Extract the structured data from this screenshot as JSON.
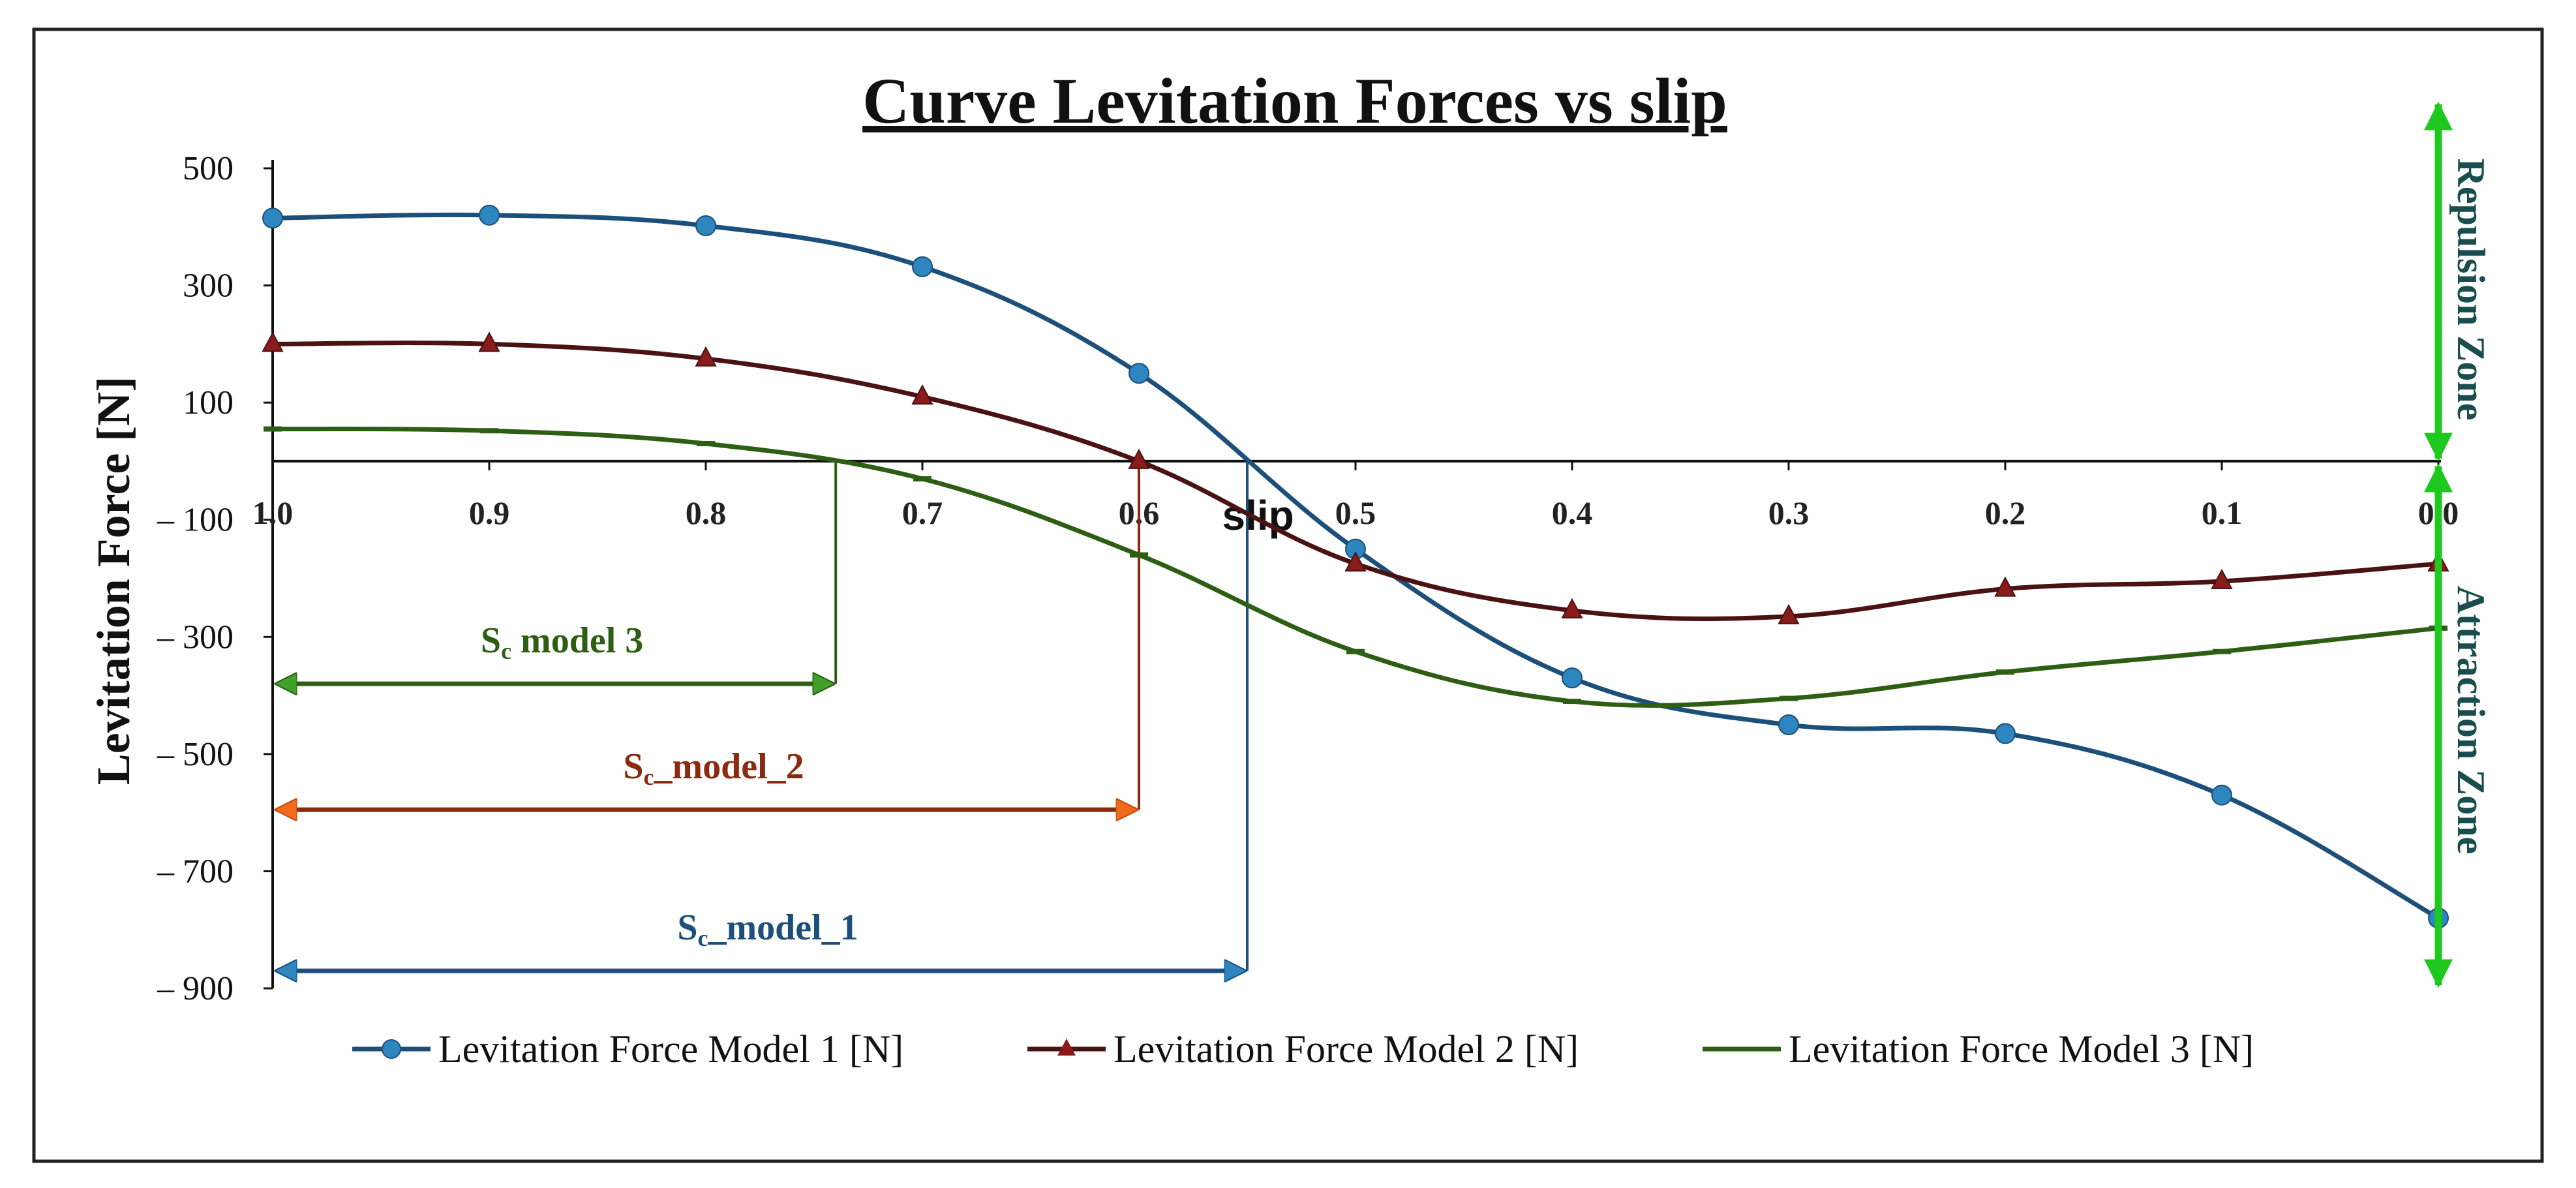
{
  "chart_data": {
    "type": "line",
    "title": "Curve Levitation Forces vs slip",
    "xlabel": "slip",
    "ylabel": "Levitation Force [N]",
    "x": [
      1.0,
      0.9,
      0.8,
      0.7,
      0.6,
      0.5,
      0.4,
      0.3,
      0.2,
      0.1,
      0.0
    ],
    "x_tick_labels": [
      "1.0",
      "0.9",
      "0.8",
      "0.7",
      "0.6",
      "0.5",
      "0.4",
      "0.3",
      "0.2",
      "0.1",
      "0.0"
    ],
    "xlim": [
      1.0,
      0.0
    ],
    "ylim": [
      -900,
      500
    ],
    "y_ticks": [
      500,
      300,
      100,
      -100,
      -300,
      -500,
      -700,
      -900
    ],
    "y_tick_labels": [
      "500",
      "300",
      "100",
      "– 100",
      "– 300",
      "– 500",
      "– 700",
      "– 900"
    ],
    "series": [
      {
        "name": "Levitation Force Model 1 [N]",
        "color": "#1c4f7a",
        "marker": "circle",
        "marker_color": "#2e86c1",
        "values": [
          415,
          420,
          402,
          332,
          150,
          -150,
          -370,
          -450,
          -465,
          -570,
          -780
        ]
      },
      {
        "name": "Levitation Force Model 2 [N]",
        "color": "#4a1212",
        "marker": "triangle",
        "marker_color": "#8b1a1a",
        "values": [
          200,
          200,
          175,
          110,
          0,
          -175,
          -255,
          -265,
          -218,
          -205,
          -175
        ]
      },
      {
        "name": "Levitation Force Model 3 [N]",
        "color": "#2d5e14",
        "marker": "dash",
        "marker_color": "#2d5e14",
        "values": [
          55,
          52,
          30,
          -30,
          -160,
          -325,
          -410,
          -405,
          -360,
          -325,
          -285
        ]
      }
    ],
    "critical_slip": [
      {
        "label": "Sc_model_1",
        "sub": "c",
        "prefix": "S",
        "suffix": "_model_1",
        "slip": 0.55,
        "y": -870,
        "color": "#1c4f7a",
        "arrow_color": "#2e86c1"
      },
      {
        "label": "Sc_model_2",
        "sub": "c",
        "prefix": "S",
        "suffix": "_model_2",
        "slip": 0.6,
        "y": -595,
        "color": "#8b2a10",
        "arrow_color": "#f26b1d"
      },
      {
        "label": "Sc model 3",
        "sub": "c",
        "prefix": "S",
        "suffix": "  model  3",
        "slip": 0.74,
        "y": -380,
        "color": "#2d5e14",
        "arrow_color": "#3fa02a"
      }
    ],
    "zones": [
      {
        "label": "Repulsion Zone",
        "arrow_color": "#1ec81e"
      },
      {
        "label": "Attraction Zone",
        "arrow_color": "#1ec81e"
      }
    ],
    "legend_position": "bottom"
  }
}
